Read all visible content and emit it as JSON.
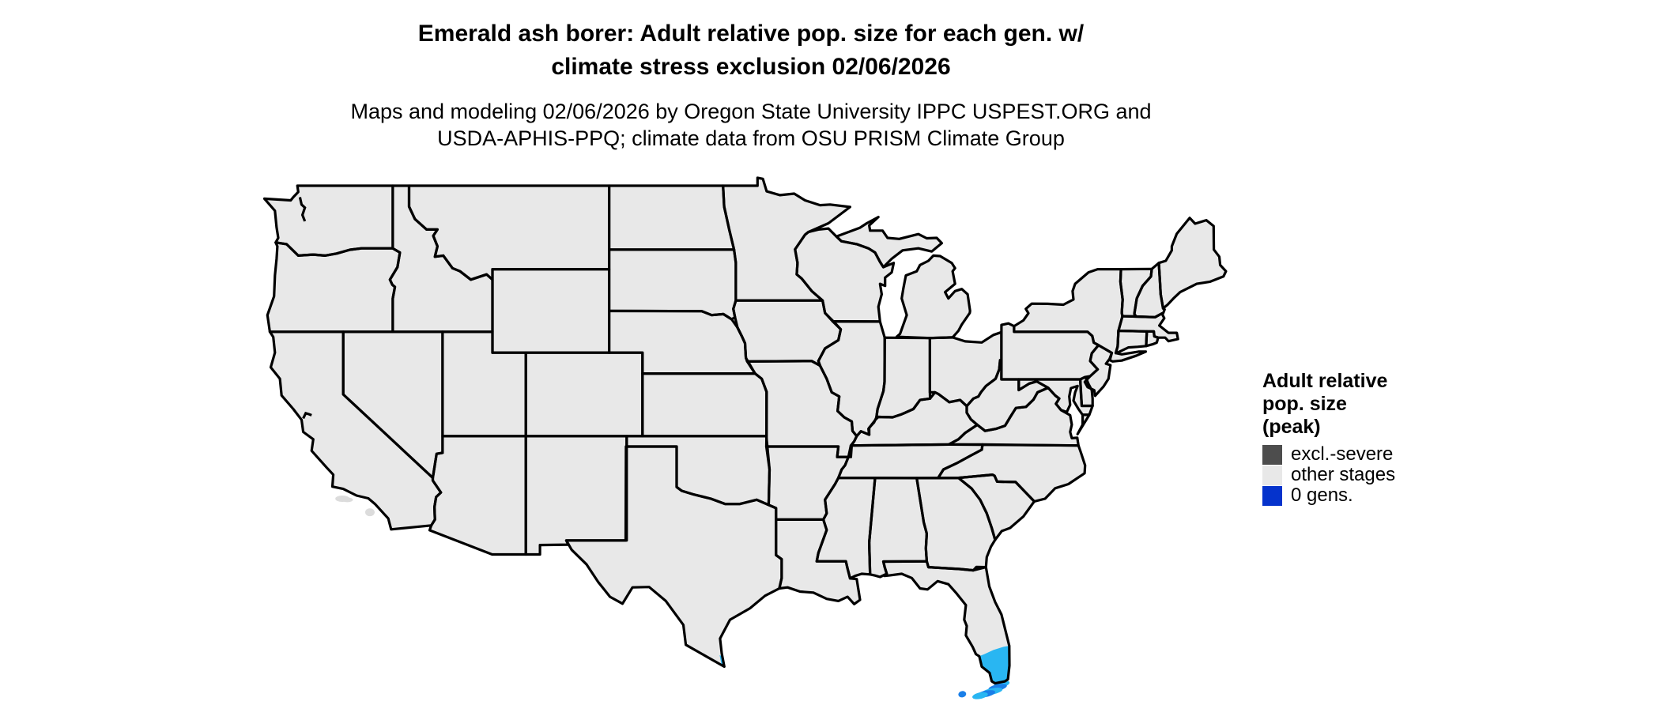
{
  "title": {
    "line1": "Emerald ash borer: Adult relative pop. size for each gen. w/",
    "line2": "climate stress exclusion 02/06/2026"
  },
  "subtitle": {
    "line1": "Maps and modeling 02/06/2026 by Oregon State University IPPC USPEST.ORG and",
    "line2": "USDA-APHIS-PPQ; climate data from OSU PRISM Climate Group"
  },
  "legend": {
    "title_lines": [
      "Adult relative",
      "pop. size",
      "(peak)"
    ],
    "items": [
      {
        "label": "excl.-severe",
        "color": "#4d4d4d"
      },
      {
        "label": "other stages",
        "color": "#e8e8e8"
      },
      {
        "label": "0 gens.",
        "color": "#0533cc"
      }
    ]
  },
  "map": {
    "base_fill": "#e8e8e8",
    "border_color": "#000000",
    "background": "#ffffff",
    "highlights": {
      "south_florida_tip": "#29b6f2",
      "south_texas_tip": "#29b6f2",
      "florida_keys": "#1a7fe8",
      "offshore_islands": "#dcdcdc"
    }
  }
}
